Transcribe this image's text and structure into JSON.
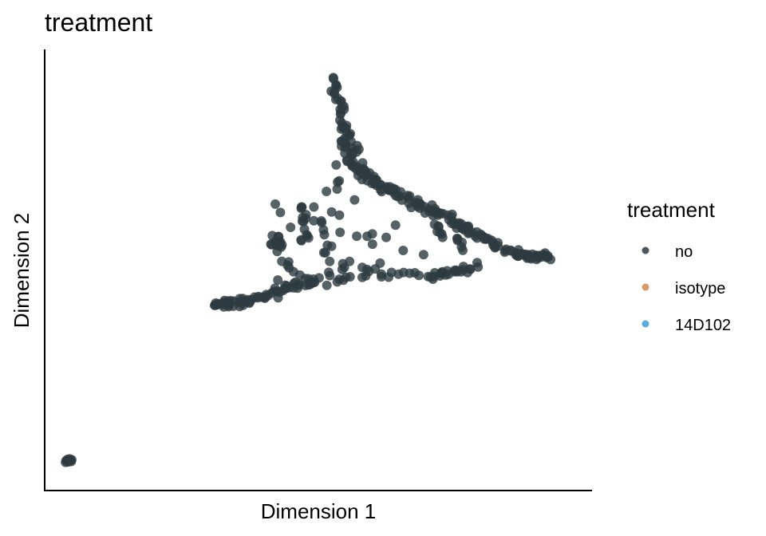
{
  "chart_data": {
    "type": "scatter",
    "title": "treatment",
    "xlabel": "Dimension 1",
    "ylabel": "Dimension 2",
    "xlim": [
      0,
      100
    ],
    "ylim": [
      0,
      100
    ],
    "axis_ticks": "none",
    "grid": false,
    "legend": {
      "title": "treatment",
      "placement": "right",
      "entries": [
        {
          "label": "no",
          "color": "#2d3b40"
        },
        {
          "label": "isotype",
          "color": "#d2894f"
        },
        {
          "label": "14D102",
          "color": "#3aa0d0"
        }
      ]
    },
    "series": [
      {
        "name": "no",
        "color": "#2d3b40",
        "segments": [
          {
            "from": [
              53.0,
              95.5
            ],
            "to": [
              55.5,
              82.0
            ],
            "n": 28,
            "jitter": 1.0
          },
          {
            "from": [
              55.5,
              82.0
            ],
            "to": [
              57.5,
              74.0
            ],
            "n": 30,
            "jitter": 1.6
          },
          {
            "from": [
              57.5,
              74.0
            ],
            "to": [
              63.0,
              69.5
            ],
            "n": 28,
            "jitter": 1.4
          },
          {
            "from": [
              63.0,
              69.5
            ],
            "to": [
              71.5,
              65.0
            ],
            "n": 28,
            "jitter": 1.3
          },
          {
            "from": [
              71.5,
              65.0
            ],
            "to": [
              79.0,
              60.0
            ],
            "n": 26,
            "jitter": 1.3
          },
          {
            "from": [
              79.0,
              60.0
            ],
            "to": [
              89.0,
              54.0
            ],
            "n": 30,
            "jitter": 1.0
          },
          {
            "from": [
              89.0,
              54.0
            ],
            "to": [
              95.0,
              53.5
            ],
            "n": 30,
            "jitter": 0.7
          },
          {
            "from": [
              81.0,
              51.0
            ],
            "to": [
              71.5,
              49.0
            ],
            "n": 22,
            "jitter": 1.0
          },
          {
            "from": [
              71.5,
              49.0
            ],
            "to": [
              59.0,
              49.5
            ],
            "n": 14,
            "jitter": 1.4
          },
          {
            "from": [
              59.0,
              49.5
            ],
            "to": [
              48.0,
              47.5
            ],
            "n": 12,
            "jitter": 1.4
          },
          {
            "from": [
              48.0,
              47.5
            ],
            "to": [
              36.0,
              43.0
            ],
            "n": 32,
            "jitter": 1.0
          },
          {
            "from": [
              36.0,
              43.0
            ],
            "to": [
              29.5,
              42.0
            ],
            "n": 26,
            "jitter": 0.8
          },
          {
            "from": [
              46.5,
              66.0
            ],
            "to": [
              47.0,
              57.0
            ],
            "n": 12,
            "jitter": 0.8
          },
          {
            "from": [
              49.5,
              65.0
            ],
            "to": [
              52.0,
              52.0
            ],
            "n": 8,
            "jitter": 1.2
          },
          {
            "from": [
              53.5,
              74.0
            ],
            "to": [
              54.5,
              60.0
            ],
            "n": 6,
            "jitter": 1.6
          },
          {
            "from": [
              41.5,
              59.0
            ],
            "to": [
              42.5,
              55.0
            ],
            "n": 8,
            "jitter": 0.8
          },
          {
            "from": [
              40.5,
              56.5
            ],
            "to": [
              43.0,
              56.5
            ],
            "n": 8,
            "jitter": 0.6
          },
          {
            "from": [
              43.0,
              53.0
            ],
            "to": [
              45.0,
              50.0
            ],
            "n": 5,
            "jitter": 1.0
          },
          {
            "from": [
              46.0,
              49.0
            ],
            "to": [
              50.0,
              47.5
            ],
            "n": 5,
            "jitter": 0.8
          },
          {
            "from": [
              52.0,
              49.0
            ],
            "to": [
              56.0,
              52.5
            ],
            "n": 5,
            "jitter": 1.0
          },
          {
            "from": [
              58.0,
              59.0
            ],
            "to": [
              62.5,
              58.0
            ],
            "n": 4,
            "jitter": 1.2
          },
          {
            "from": [
              72.5,
              62.0
            ],
            "to": [
              74.5,
              58.0
            ],
            "n": 8,
            "jitter": 0.8
          },
          {
            "from": [
              77.0,
              58.5
            ],
            "to": [
              78.0,
              55.0
            ],
            "n": 6,
            "jitter": 0.8
          }
        ],
        "outliers": [
          [
            0.5,
            4.8
          ],
          [
            0.8,
            5.0
          ],
          [
            1.1,
            5.2
          ],
          [
            1.4,
            5.3
          ],
          [
            1.7,
            5.4
          ],
          [
            0.6,
            5.2
          ],
          [
            1.0,
            4.9
          ],
          [
            1.3,
            5.6
          ],
          [
            0.9,
            5.5
          ],
          [
            1.6,
            5.0
          ],
          [
            42.5,
            64.0
          ],
          [
            44.5,
            60.5
          ],
          [
            48.0,
            58.0
          ],
          [
            51.0,
            54.5
          ],
          [
            62.0,
            52.0
          ],
          [
            66.5,
            55.0
          ],
          [
            43.0,
            45.5
          ],
          [
            55.0,
            51.0
          ],
          [
            52.5,
            56.0
          ],
          [
            65.0,
            61.0
          ],
          [
            70.5,
            54.0
          ],
          [
            60.5,
            56.5
          ],
          [
            42.0,
            48.0
          ],
          [
            50.5,
            62.0
          ],
          [
            47.5,
            63.5
          ],
          [
            41.5,
            66.0
          ],
          [
            51.5,
            69.0
          ],
          [
            54.0,
            71.5
          ],
          [
            57.0,
            67.0
          ],
          [
            58.5,
            51.0
          ]
        ]
      },
      {
        "name": "isotype",
        "color": "#d2894f",
        "points": []
      },
      {
        "name": "14D102",
        "color": "#3aa0d0",
        "points": []
      }
    ]
  }
}
